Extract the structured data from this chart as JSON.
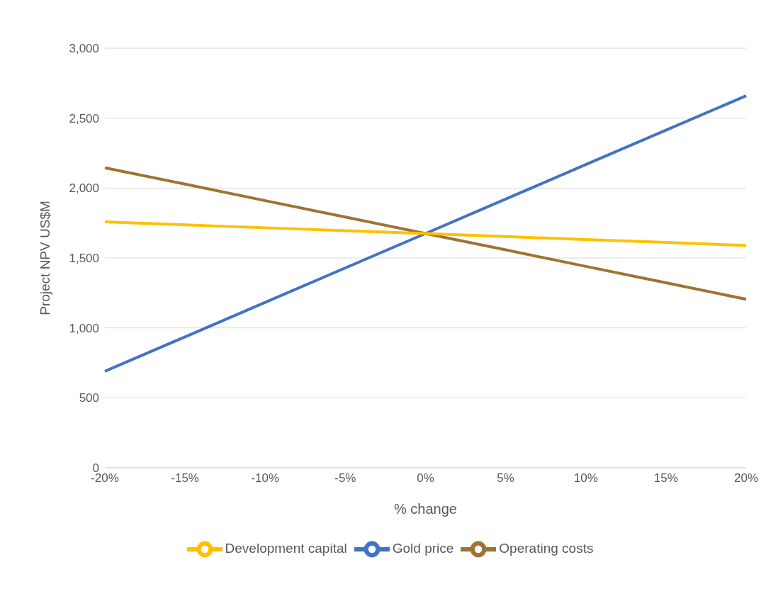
{
  "chart_data": {
    "type": "line",
    "xlabel": "% change",
    "ylabel": "Project  NPV US$M",
    "categories": [
      "-20%",
      "-15%",
      "-10%",
      "-5%",
      "0%",
      "5%",
      "10%",
      "15%",
      "20%"
    ],
    "series": [
      {
        "name": "Gold price",
        "color": "#4472c4",
        "values": [
          690,
          936,
          1183,
          1429,
          1675,
          1921,
          2168,
          2414,
          2660
        ]
      },
      {
        "name": "Operating costs",
        "color": "#9e7432",
        "values": [
          2145,
          2028,
          1910,
          1793,
          1675,
          1558,
          1440,
          1323,
          1205
        ]
      },
      {
        "name": "Development capital",
        "color": "#ffc000",
        "values": [
          1758,
          1737,
          1716,
          1695,
          1675,
          1653,
          1632,
          1611,
          1590
        ]
      }
    ],
    "ylim": [
      0,
      3000
    ],
    "yticks": [
      0,
      500,
      {
        "value": 1000,
        "label": "1,000"
      },
      {
        "value": 1500,
        "label": "1,500"
      },
      {
        "value": 2000,
        "label": "2,000"
      },
      {
        "value": 2500,
        "label": "2,500"
      },
      {
        "value": 3000,
        "label": "3,000"
      }
    ],
    "grid": "y",
    "legend": "bottom",
    "marker": "none",
    "line_style": "solid"
  }
}
